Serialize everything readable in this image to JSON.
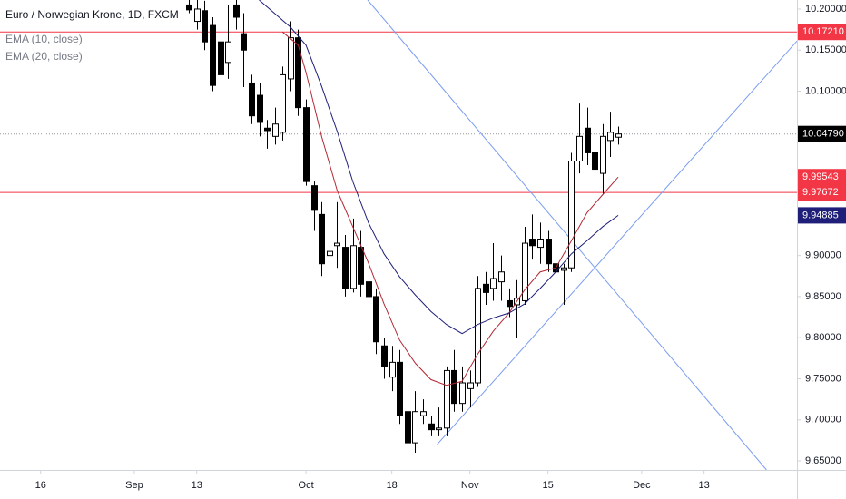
{
  "chart_data": {
    "type": "candlestick",
    "title": "Euro / Norwegian Krone, 1D, FXCM",
    "x": [
      19,
      20,
      21,
      22,
      23,
      24,
      25,
      26,
      27,
      28,
      29,
      30,
      31,
      32,
      33,
      34,
      35,
      36,
      37,
      38,
      39,
      40,
      41,
      42,
      43,
      44,
      45,
      46,
      47,
      48,
      49,
      50,
      51,
      52,
      53,
      54,
      55,
      56,
      57,
      58,
      59,
      60,
      61,
      62,
      63,
      64,
      65,
      66,
      67,
      68,
      69,
      70,
      71,
      72,
      73,
      74
    ],
    "open": [
      10.205,
      10.185,
      10.198,
      10.18,
      10.16,
      10.135,
      10.205,
      10.17,
      10.11,
      10.095,
      10.055,
      10.045,
      10.05,
      10.115,
      10.165,
      10.08,
      9.985,
      9.95,
      9.9,
      9.912,
      9.91,
      9.86,
      9.91,
      9.868,
      9.85,
      9.79,
      9.752,
      9.77,
      9.71,
      9.672,
      9.705,
      9.695,
      9.688,
      9.69,
      9.76,
      9.72,
      9.738,
      9.745,
      9.865,
      9.86,
      9.868,
      9.845,
      9.84,
      9.845,
      9.92,
      9.91,
      9.92,
      9.89,
      9.882,
      9.885,
      10.015,
      10.055,
      10.025,
      10.0,
      10.04,
      10.044
    ],
    "high": [
      10.212,
      10.211,
      10.21,
      10.19,
      10.17,
      10.205,
      10.215,
      10.195,
      10.12,
      10.11,
      10.065,
      10.08,
      10.13,
      10.185,
      10.175,
      10.09,
      9.99,
      9.965,
      9.95,
      9.965,
      9.925,
      9.945,
      9.93,
      9.88,
      9.86,
      9.8,
      9.79,
      9.785,
      9.72,
      9.735,
      9.725,
      9.705,
      9.715,
      9.765,
      9.785,
      9.765,
      9.76,
      9.875,
      9.88,
      9.915,
      9.9,
      9.86,
      9.87,
      9.935,
      9.95,
      9.94,
      9.93,
      9.9,
      9.89,
      10.025,
      10.085,
      10.08,
      10.105,
      10.06,
      10.075,
      10.057
    ],
    "low": [
      10.195,
      10.175,
      10.15,
      10.1,
      10.105,
      10.115,
      10.175,
      10.105,
      10.06,
      10.045,
      10.03,
      10.035,
      10.04,
      10.1,
      10.07,
      9.985,
      9.93,
      9.875,
      9.88,
      9.885,
      9.85,
      9.855,
      9.85,
      9.835,
      9.78,
      9.75,
      9.735,
      9.695,
      9.66,
      9.66,
      9.695,
      9.68,
      9.68,
      9.68,
      9.71,
      9.71,
      9.715,
      9.74,
      9.84,
      9.845,
      9.845,
      9.825,
      9.8,
      9.84,
      9.895,
      9.89,
      9.88,
      9.865,
      9.84,
      9.88,
      10.0,
      10.01,
      9.995,
      9.975,
      10.02,
      10.035
    ],
    "close": [
      10.199,
      10.2,
      10.16,
      10.107,
      10.12,
      10.16,
      10.19,
      10.15,
      10.07,
      10.062,
      10.052,
      10.06,
      10.12,
      10.165,
      10.08,
      9.99,
      9.955,
      9.89,
      9.905,
      9.915,
      9.86,
      9.912,
      9.865,
      9.85,
      9.795,
      9.765,
      9.77,
      9.705,
      9.672,
      9.71,
      9.71,
      9.688,
      9.69,
      9.76,
      9.72,
      9.745,
      9.745,
      9.86,
      9.855,
      9.872,
      9.88,
      9.838,
      9.848,
      9.915,
      9.912,
      9.92,
      9.89,
      9.88,
      9.885,
      10.015,
      10.045,
      10.025,
      10.005,
      10.045,
      10.05,
      10.0479
    ],
    "up_color": "#ffffff",
    "down_color": "#000000",
    "series": [
      {
        "name": "EMA (10, close)",
        "color": "#b22833",
        "x": [
          31,
          33,
          34,
          36,
          38,
          40,
          42,
          44,
          46,
          48,
          50,
          52,
          54,
          56,
          58,
          60,
          62,
          64,
          66,
          68,
          70,
          72,
          74
        ],
        "values": [
          10.172,
          10.156,
          10.123,
          10.045,
          9.979,
          9.935,
          9.891,
          9.841,
          9.797,
          9.769,
          9.749,
          9.742,
          9.747,
          9.78,
          9.808,
          9.83,
          9.858,
          9.88,
          9.885,
          9.918,
          9.952,
          9.974,
          9.99543
        ]
      },
      {
        "name": "EMA (20, close)",
        "color": "#1f1f7a",
        "x": [
          28,
          32,
          34,
          36,
          38,
          40,
          42,
          44,
          46,
          48,
          50,
          52,
          54,
          56,
          58,
          60,
          62,
          64,
          66,
          68,
          70,
          72,
          74
        ],
        "values": [
          10.211,
          10.178,
          10.156,
          10.106,
          10.051,
          9.99,
          9.94,
          9.902,
          9.874,
          9.852,
          9.832,
          9.816,
          9.805,
          9.816,
          9.824,
          9.83,
          9.841,
          9.86,
          9.88,
          9.902,
          9.918,
          9.935,
          9.94885
        ]
      }
    ],
    "xlim": [
      -5.2,
      96.9
    ],
    "ylim": [
      9.639,
      10.211
    ],
    "xticks": [
      {
        "value": 0,
        "label": "16"
      },
      {
        "value": 12,
        "label": "Sep"
      },
      {
        "value": 20,
        "label": "13"
      },
      {
        "value": 34,
        "label": "Oct"
      },
      {
        "value": 45,
        "label": "18"
      },
      {
        "value": 55,
        "label": "Nov"
      },
      {
        "value": 65,
        "label": "15"
      },
      {
        "value": 77,
        "label": "Dec"
      },
      {
        "value": 85,
        "label": "13"
      }
    ],
    "yticks": [
      {
        "value": 10.2,
        "label": "10.20000"
      },
      {
        "value": 10.15,
        "label": "10.15000"
      },
      {
        "value": 10.1,
        "label": "10.10000"
      },
      {
        "value": 9.9,
        "label": "9.90000"
      },
      {
        "value": 9.85,
        "label": "9.85000"
      },
      {
        "value": 9.8,
        "label": "9.80000"
      },
      {
        "value": 9.75,
        "label": "9.75000"
      },
      {
        "value": 9.7,
        "label": "9.70000"
      },
      {
        "value": 9.65,
        "label": "9.65000"
      }
    ],
    "grid": false,
    "price_markers": [
      {
        "value": 10.1721,
        "label": "10.17210",
        "color": "#f23645",
        "line": "solid"
      },
      {
        "value": 10.0479,
        "label": "10.04790",
        "color": "#000000",
        "line": "dotted"
      },
      {
        "value": 9.99543,
        "label": "9.99543",
        "color": "#f23645",
        "line": "none"
      },
      {
        "value": 9.97672,
        "label": "9.97672",
        "color": "#f23645",
        "line": "solid"
      },
      {
        "value": 9.94885,
        "label": "9.94885",
        "color": "#1f1f7a",
        "line": "none"
      }
    ],
    "trendlines": [
      {
        "color": "#7a9cf0",
        "x": [
          41.9,
          93.0
        ],
        "values": [
          10.211,
          9.639
        ]
      },
      {
        "color": "#7a9cf0",
        "x": [
          50.8,
          96.9
        ],
        "values": [
          9.67,
          10.161
        ]
      }
    ]
  }
}
